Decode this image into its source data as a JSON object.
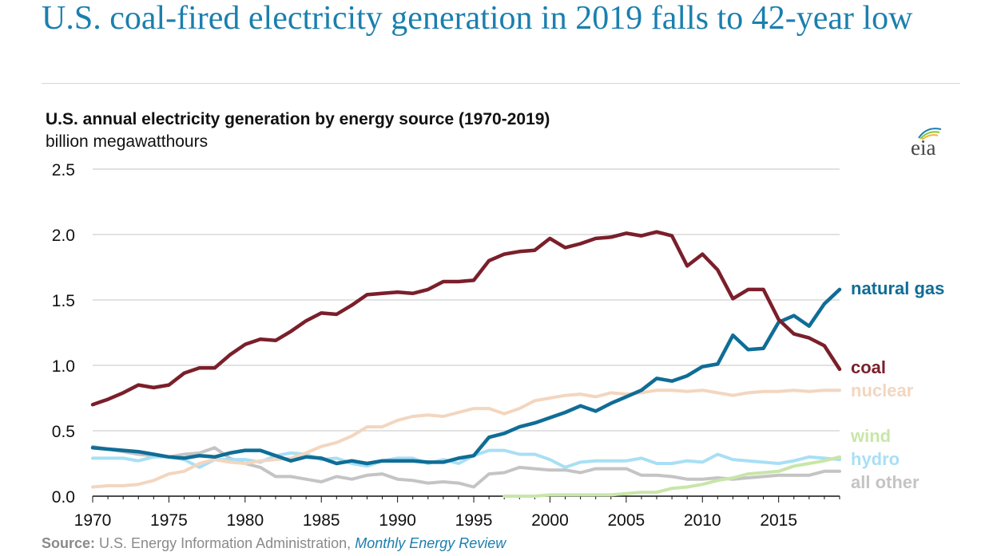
{
  "headline": "U.S. coal-fired electricity generation in 2019 falls to 42-year low",
  "source": {
    "label": "Source:",
    "agency": "U.S. Energy Information Administration,",
    "publication": "Monthly Energy Review"
  },
  "logo": {
    "text": "eia",
    "icon": "eia-logo-icon"
  },
  "chart_data": {
    "type": "line",
    "title": "U.S. annual electricity generation by energy source (1970-2019)",
    "ylabel": "billion megawatthours",
    "xlabel": "",
    "xlim": [
      1970,
      2019
    ],
    "ylim": [
      0,
      2.5
    ],
    "grid": true,
    "y_ticks": [
      "0.0",
      "0.5",
      "1.0",
      "1.5",
      "2.0",
      "2.5"
    ],
    "x_ticks": [
      "1970",
      "1975",
      "1980",
      "1985",
      "1990",
      "1995",
      "2000",
      "2005",
      "2010",
      "2015"
    ],
    "series": [
      {
        "name": "all other",
        "color": "#c4c4c4",
        "start": 1970,
        "values": [
          0.38,
          0.36,
          0.34,
          0.32,
          0.31,
          0.3,
          0.32,
          0.33,
          0.37,
          0.29,
          0.25,
          0.22,
          0.15,
          0.15,
          0.13,
          0.11,
          0.15,
          0.13,
          0.16,
          0.17,
          0.13,
          0.12,
          0.1,
          0.11,
          0.1,
          0.07,
          0.17,
          0.18,
          0.22,
          0.21,
          0.2,
          0.2,
          0.18,
          0.21,
          0.21,
          0.21,
          0.16,
          0.16,
          0.15,
          0.13,
          0.13,
          0.14,
          0.13,
          0.14,
          0.15,
          0.16,
          0.16,
          0.16,
          0.19,
          0.19
        ]
      },
      {
        "name": "hydro",
        "color": "#a8dff5",
        "start": 1970,
        "values": [
          0.29,
          0.29,
          0.29,
          0.27,
          0.3,
          0.3,
          0.28,
          0.22,
          0.28,
          0.28,
          0.28,
          0.26,
          0.31,
          0.33,
          0.32,
          0.28,
          0.29,
          0.25,
          0.23,
          0.27,
          0.29,
          0.29,
          0.25,
          0.28,
          0.25,
          0.31,
          0.35,
          0.35,
          0.32,
          0.32,
          0.28,
          0.22,
          0.26,
          0.27,
          0.27,
          0.27,
          0.29,
          0.25,
          0.25,
          0.27,
          0.26,
          0.32,
          0.28,
          0.27,
          0.26,
          0.25,
          0.27,
          0.3,
          0.29,
          0.28
        ]
      },
      {
        "name": "nuclear",
        "color": "#f3d6bf",
        "start": 1970,
        "values": [
          0.07,
          0.08,
          0.08,
          0.09,
          0.12,
          0.17,
          0.19,
          0.25,
          0.28,
          0.26,
          0.25,
          0.27,
          0.28,
          0.29,
          0.33,
          0.38,
          0.41,
          0.46,
          0.53,
          0.53,
          0.58,
          0.61,
          0.62,
          0.61,
          0.64,
          0.67,
          0.67,
          0.63,
          0.67,
          0.73,
          0.75,
          0.77,
          0.78,
          0.76,
          0.79,
          0.78,
          0.79,
          0.81,
          0.81,
          0.8,
          0.81,
          0.79,
          0.77,
          0.79,
          0.8,
          0.8,
          0.81,
          0.8,
          0.81,
          0.81
        ]
      },
      {
        "name": "wind",
        "color": "#c8e6a8",
        "start": 1997,
        "values": [
          0.0,
          0.0,
          0.0,
          0.01,
          0.01,
          0.01,
          0.01,
          0.01,
          0.02,
          0.03,
          0.03,
          0.06,
          0.07,
          0.09,
          0.12,
          0.14,
          0.17,
          0.18,
          0.19,
          0.23,
          0.25,
          0.27,
          0.3
        ]
      },
      {
        "name": "natural gas",
        "color": "#0f6d96",
        "start": 1970,
        "values": [
          0.37,
          0.36,
          0.35,
          0.34,
          0.32,
          0.3,
          0.29,
          0.31,
          0.3,
          0.33,
          0.35,
          0.35,
          0.31,
          0.27,
          0.3,
          0.29,
          0.25,
          0.27,
          0.25,
          0.27,
          0.27,
          0.27,
          0.26,
          0.26,
          0.29,
          0.31,
          0.45,
          0.48,
          0.53,
          0.56,
          0.6,
          0.64,
          0.69,
          0.65,
          0.71,
          0.76,
          0.81,
          0.9,
          0.88,
          0.92,
          0.99,
          1.01,
          1.23,
          1.12,
          1.13,
          1.33,
          1.38,
          1.3,
          1.47,
          1.58
        ]
      },
      {
        "name": "coal",
        "color": "#7a1f2b",
        "start": 1970,
        "values": [
          0.7,
          0.74,
          0.79,
          0.85,
          0.83,
          0.85,
          0.94,
          0.98,
          0.98,
          1.08,
          1.16,
          1.2,
          1.19,
          1.26,
          1.34,
          1.4,
          1.39,
          1.46,
          1.54,
          1.55,
          1.56,
          1.55,
          1.58,
          1.64,
          1.64,
          1.65,
          1.8,
          1.85,
          1.87,
          1.88,
          1.97,
          1.9,
          1.93,
          1.97,
          1.98,
          2.01,
          1.99,
          2.02,
          1.99,
          1.76,
          1.85,
          1.73,
          1.51,
          1.58,
          1.58,
          1.35,
          1.24,
          1.21,
          1.15,
          0.97
        ]
      }
    ],
    "legend": [
      {
        "name": "natural gas",
        "color": "#0f6d96"
      },
      {
        "name": "coal",
        "color": "#7a1f2b"
      },
      {
        "name": "nuclear",
        "color": "#f3d6bf"
      },
      {
        "name": "wind",
        "color": "#c8e6a8"
      },
      {
        "name": "hydro",
        "color": "#a8dff5"
      },
      {
        "name": "all other",
        "color": "#c4c4c4"
      }
    ]
  }
}
